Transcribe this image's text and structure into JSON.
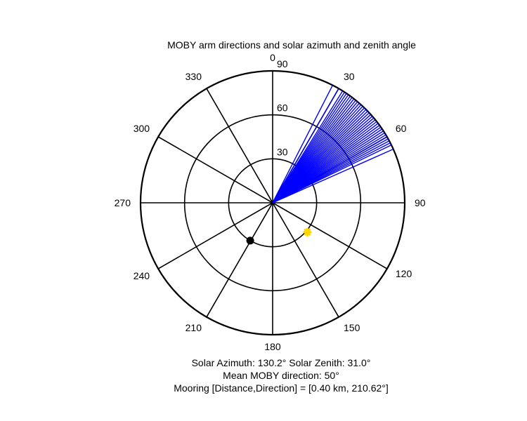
{
  "chart_data": {
    "type": "polar",
    "title": "MOBY arm directions and solar azimuth and zenith angle",
    "angle_ticks": [
      "0",
      "30",
      "60",
      "90",
      "120",
      "150",
      "180",
      "210",
      "240",
      "270",
      "300",
      "330"
    ],
    "radial_ticks": [
      "30",
      "60",
      "90"
    ],
    "radial_range": [
      0,
      90
    ],
    "grid": true,
    "arm_directions": {
      "color": "#0000ff",
      "radius": 90,
      "azimuths_deg": [
        27,
        30,
        32,
        33,
        34,
        35,
        36,
        37,
        38,
        39,
        40,
        41,
        42,
        43,
        44,
        45,
        46,
        47,
        48,
        49,
        50,
        51,
        52,
        53,
        54,
        55,
        56,
        57,
        58,
        59,
        60,
        61,
        62,
        63,
        64,
        66
      ]
    },
    "sun_marker": {
      "azimuth_deg": 130.2,
      "zenith_deg": 31.0,
      "color": "#ffd700",
      "symbol": "asterisk"
    },
    "mooring_marker": {
      "direction_deg": 210.62,
      "radius": 30,
      "color": "#000000",
      "symbol": "filled-circle"
    }
  },
  "caption": {
    "line1": "Solar Azimuth: 130.2°   Solar Zenith: 31.0°",
    "line2": "Mean MOBY direction: 50°",
    "line3": "Mooring [Distance,Direction] = [0.40 km, 210.62°]"
  }
}
